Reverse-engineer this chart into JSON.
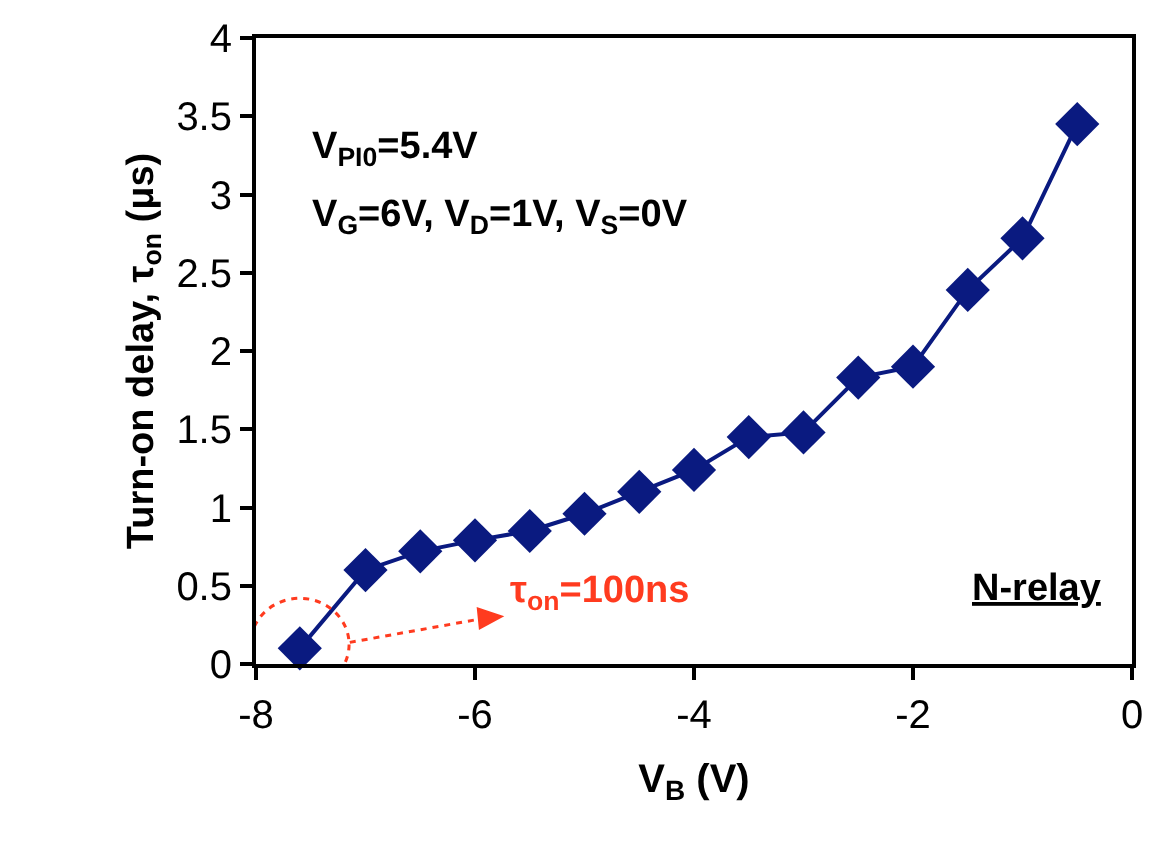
{
  "chart_data": {
    "type": "line",
    "xlabel": "V$_{B}$ (V)",
    "ylabel": "Turn-on delay, τ$_{on}$ (μs)",
    "x": [
      -7.6,
      -7.0,
      -6.5,
      -6.0,
      -5.5,
      -5.0,
      -4.5,
      -4.0,
      -3.5,
      -3.0,
      -2.5,
      -2.0,
      -1.5,
      -1.0,
      -0.5
    ],
    "series": [
      {
        "color": "#0a1a80",
        "values": [
          0.1,
          0.6,
          0.72,
          0.79,
          0.85,
          0.96,
          1.1,
          1.24,
          1.45,
          1.48,
          1.83,
          1.9,
          2.39,
          2.72,
          3.45
        ]
      }
    ],
    "xlim": [
      -8,
      0
    ],
    "xticks": [
      -8,
      -6,
      -4,
      -2,
      0
    ],
    "ylim": [
      0,
      4
    ],
    "yticks": [
      0,
      0.5,
      1,
      1.5,
      2,
      2.5,
      3,
      3.5,
      4
    ],
    "marker": "diamond",
    "line_style": "solid",
    "annotations": [
      "V$_{PI0}$=5.4V",
      "V$_{G}$=6V, V$_{D}$=1V, V$_{S}$=0V",
      "N-relay",
      "τ$_{on}$=100ns"
    ]
  }
}
